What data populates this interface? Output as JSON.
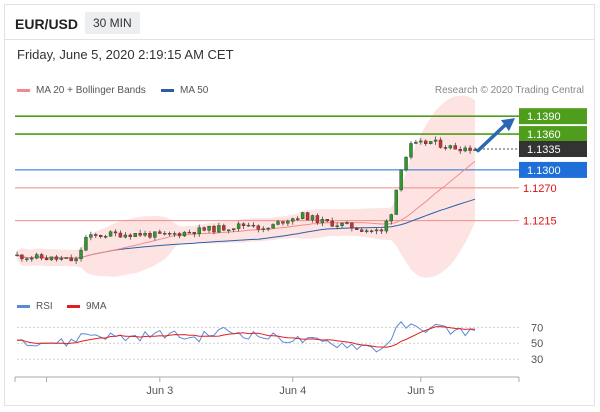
{
  "header": {
    "symbol": "EUR/USD",
    "timeframe": "30 MIN"
  },
  "timestamp": "Friday, June 5, 2020 2:19:15 AM CET",
  "legend": {
    "ma20": {
      "label": "MA 20 + Bollinger Bands",
      "color": "#f08b8b"
    },
    "ma50": {
      "label": "MA 50",
      "color": "#2a5fa8"
    }
  },
  "credit": "Research © 2020 Trading Central",
  "rsi_legend": {
    "rsi": {
      "label": "RSI",
      "color": "#5b8ad6"
    },
    "ma9": {
      "label": "9MA",
      "color": "#e02020"
    }
  },
  "colors": {
    "bull": "#2c9a2c",
    "bear": "#d62b2b",
    "band_fill": "#fde4e3",
    "resistance": "#4f9d1c",
    "current": "#333333",
    "pivot": "#1f6fd8",
    "support": "#f08b8b",
    "arrow": "#2a67b5"
  },
  "chart_data": [
    {
      "type": "candlestick",
      "y_range": [
        1.1124,
        1.1402
      ],
      "x_ticks": [
        "Jun 3",
        "Jun 4",
        "Jun 5"
      ],
      "start": 1.1157,
      "path": [
        [
          0,
          1.1156
        ],
        [
          6,
          1.1152
        ],
        [
          12,
          1.1148
        ],
        [
          14,
          1.1186
        ],
        [
          18,
          1.1192
        ],
        [
          24,
          1.1193
        ],
        [
          30,
          1.119
        ],
        [
          36,
          1.1198
        ],
        [
          42,
          1.1203
        ],
        [
          48,
          1.121
        ],
        [
          50,
          1.1198
        ],
        [
          54,
          1.1215
        ],
        [
          58,
          1.1224
        ],
        [
          62,
          1.1213
        ],
        [
          66,
          1.1208
        ],
        [
          70,
          1.1201
        ],
        [
          74,
          1.1196
        ],
        [
          76,
          1.123
        ],
        [
          78,
          1.1305
        ],
        [
          80,
          1.134
        ],
        [
          84,
          1.1347
        ],
        [
          88,
          1.1338
        ],
        [
          93,
          1.1336
        ]
      ],
      "indicators": [
        "MA 20",
        "Bollinger Bands",
        "MA 50"
      ],
      "levels": [
        {
          "value": 1.139,
          "label": "1.1390",
          "kind": "resistance"
        },
        {
          "value": 1.136,
          "label": "1.1360",
          "kind": "resistance"
        },
        {
          "value": 1.1335,
          "label": "1.1335",
          "kind": "current"
        },
        {
          "value": 1.13,
          "label": "1.1300",
          "kind": "pivot"
        },
        {
          "value": 1.127,
          "label": "1.1270",
          "kind": "support"
        },
        {
          "value": 1.1215,
          "label": "1.1215",
          "kind": "support"
        }
      ],
      "target": 1.139
    },
    {
      "type": "line",
      "name": "RSI",
      "y_range": [
        20,
        78
      ],
      "y_ticks": [
        30,
        50,
        70
      ],
      "guides": [
        30,
        50,
        70
      ],
      "path": [
        [
          0,
          54
        ],
        [
          10,
          50
        ],
        [
          14,
          62
        ],
        [
          22,
          57
        ],
        [
          30,
          62
        ],
        [
          36,
          56
        ],
        [
          42,
          66
        ],
        [
          48,
          60
        ],
        [
          54,
          56
        ],
        [
          60,
          52
        ],
        [
          66,
          49
        ],
        [
          72,
          45
        ],
        [
          74,
          42
        ],
        [
          76,
          58
        ],
        [
          78,
          74
        ],
        [
          82,
          66
        ],
        [
          84,
          72
        ],
        [
          88,
          66
        ],
        [
          93,
          64
        ]
      ]
    }
  ]
}
